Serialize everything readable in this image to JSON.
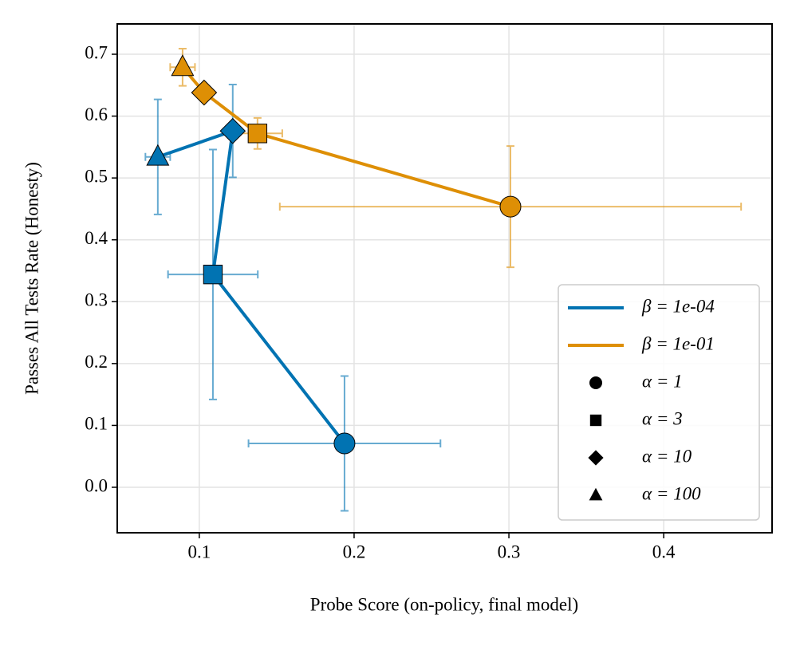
{
  "chart_data": {
    "type": "scatter",
    "xlabel": "Probe Score (on-policy, final model)",
    "ylabel": "Passes All Tests Rate (Honesty)",
    "xlim": [
      0.047,
      0.47
    ],
    "ylim": [
      -0.0735,
      0.749
    ],
    "xticks": [
      0.1,
      0.2,
      0.3,
      0.4
    ],
    "yticks": [
      {
        "value": 0,
        "label": "0.0"
      },
      0.1,
      0.2,
      0.3,
      0.4,
      0.5,
      0.6,
      0.7
    ],
    "grid": true,
    "legend": "lower right",
    "series": [
      {
        "name": "β = 1e-04",
        "color": "#0173b2",
        "x": [
          0.1938,
          0.1088,
          0.1216,
          0.0732
        ],
        "values": [
          0.0709,
          0.344,
          0.576,
          0.534
        ],
        "xerr": [
          0.062,
          0.029,
          0.004,
          0.008
        ],
        "yerr": [
          0.109,
          0.202,
          0.075,
          0.093
        ]
      },
      {
        "name": "β = 1e-01",
        "color": "#de8f05",
        "x": [
          0.301,
          0.1376,
          0.1031,
          0.0892
        ],
        "values": [
          0.4536,
          0.572,
          0.638,
          0.679
        ],
        "xerr": [
          0.149,
          0.016,
          0.004,
          0.008
        ],
        "yerr": [
          0.098,
          0.025,
          0.01,
          0.03
        ]
      }
    ],
    "markers": [
      {
        "label": "α = 1",
        "shape": "circle"
      },
      {
        "label": "α = 3",
        "shape": "square"
      },
      {
        "label": "α = 10",
        "shape": "diamond"
      },
      {
        "label": "α = 100",
        "shape": "triangle"
      }
    ]
  }
}
